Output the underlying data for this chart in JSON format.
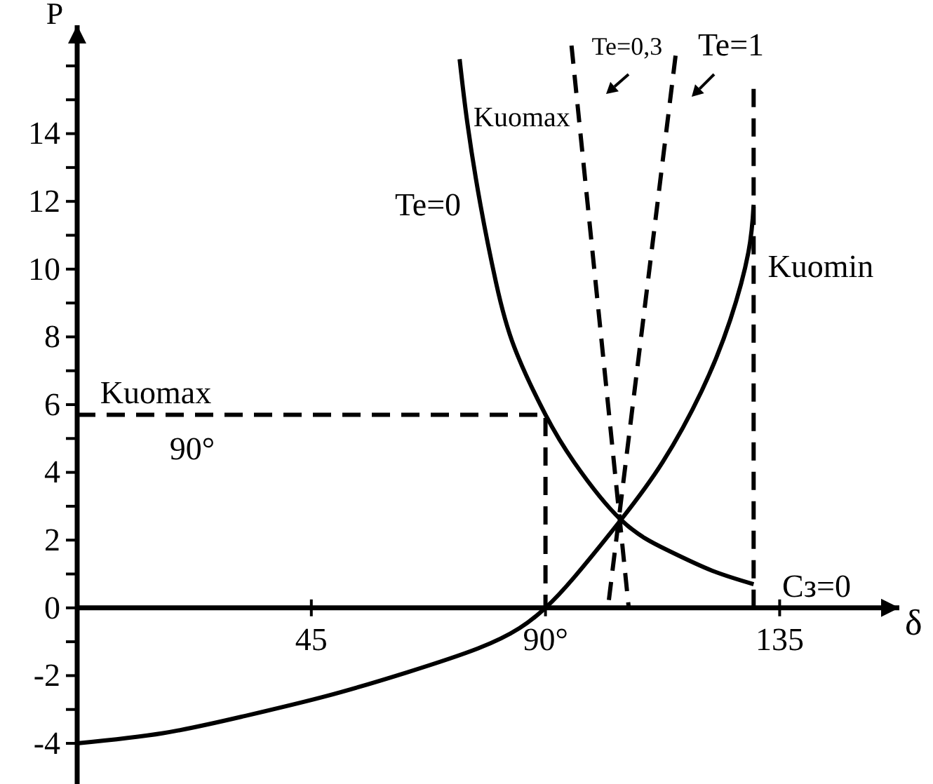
{
  "chart_data": {
    "type": "line",
    "xlabel": "δ",
    "ylabel": "P",
    "xlim": [
      0,
      158
    ],
    "ylim": [
      -5.2,
      17.2
    ],
    "xticks": [
      45,
      {
        "value": 90,
        "label": "90°"
      },
      135
    ],
    "yticks": [
      -4,
      {
        "value": -3,
        "label": null
      },
      -2,
      {
        "value": -1,
        "label": null
      },
      0,
      {
        "value": 1,
        "label": null
      },
      2,
      {
        "value": 3,
        "label": null
      },
      4,
      {
        "value": 5,
        "label": null
      },
      6,
      {
        "value": 7,
        "label": null
      },
      8,
      {
        "value": 9,
        "label": null
      },
      10,
      {
        "value": 11,
        "label": null
      },
      12,
      {
        "value": 13,
        "label": null
      },
      14,
      {
        "value": 15,
        "label": null
      },
      {
        "value": 16,
        "label": null
      }
    ],
    "series": [
      {
        "color": "#000000",
        "line_style": "solid",
        "x": [
          73.5,
          75,
          77.5,
          80.5,
          84,
          90,
          95.5,
          104.5,
          113.5,
          122,
          130
        ],
        "values": [
          16.2,
          14.3,
          11.9,
          9.6,
          7.7,
          5.7,
          4.3,
          2.6,
          1.7,
          1.1,
          0.7
        ]
      },
      {
        "color": "#000000",
        "line_style": "solid",
        "x": [
          0,
          16.5,
          32,
          48,
          63.5,
          77,
          85,
          90,
          95.5,
          104.5,
          112.5,
          120,
          125.5,
          129,
          130
        ],
        "values": [
          -4,
          -3.7,
          -3.2,
          -2.6,
          -1.9,
          -1.2,
          -0.6,
          0,
          0.9,
          2.6,
          4.3,
          6.4,
          8.5,
          10.5,
          11.9
        ]
      },
      {
        "color": "#000000",
        "line_style": "dashed",
        "x": [
          95,
          106
        ],
        "values": [
          16.6,
          0
        ]
      },
      {
        "color": "#000000",
        "line_style": "dashed",
        "x": [
          115,
          102
        ],
        "values": [
          16.3,
          0
        ]
      },
      {
        "color": "#000000",
        "line_style": "dashed",
        "x": [
          0,
          90,
          90
        ],
        "values": [
          5.7,
          5.7,
          0
        ]
      },
      {
        "color": "#000000",
        "line_style": "dashed",
        "x": [
          130,
          130
        ],
        "values": [
          0,
          15.4
        ]
      }
    ],
    "annotations": [
      "Te=0",
      "Te=0,3",
      "Te=1",
      "Kuomax",
      "Kuomin",
      "Kuomax",
      "90°",
      "Cз=0"
    ]
  }
}
